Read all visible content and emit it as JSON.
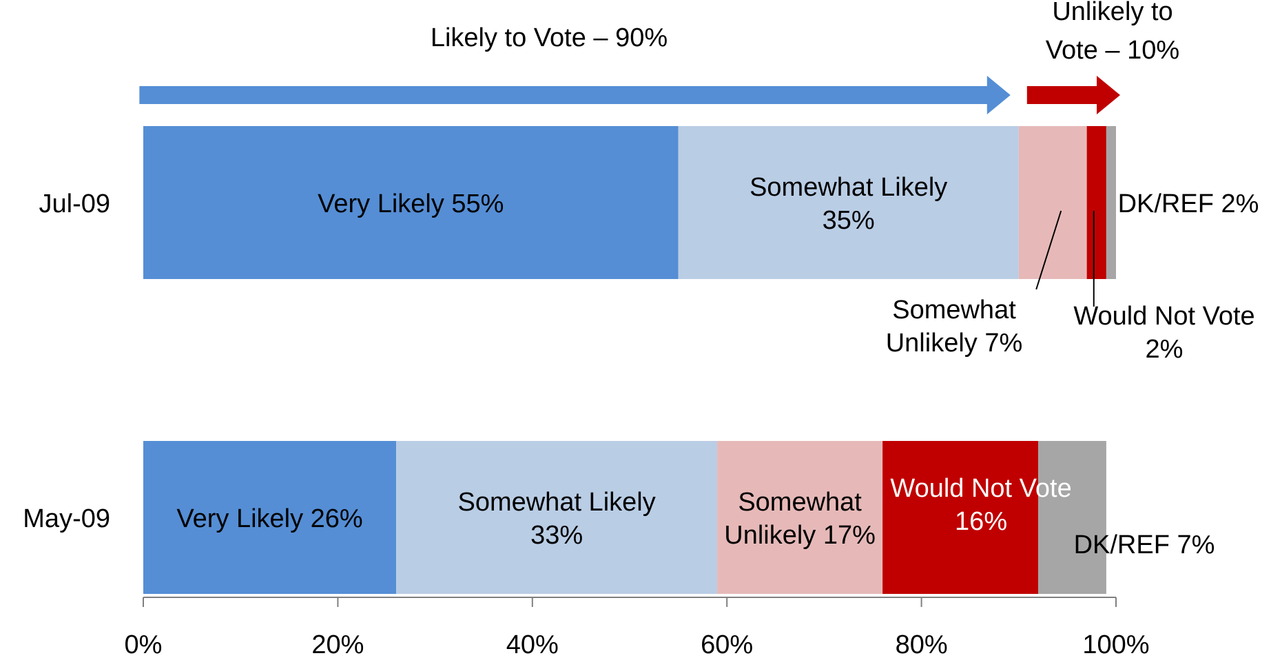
{
  "chart_data": {
    "type": "bar",
    "orientation": "horizontal",
    "stacked": true,
    "categories": [
      "Jul-09",
      "May-09"
    ],
    "xlim": [
      0,
      100
    ],
    "x_ticks": [
      "0%",
      "20%",
      "40%",
      "60%",
      "80%",
      "100%"
    ],
    "grid": false,
    "series": [
      {
        "name": "Very Likely",
        "values": [
          55,
          26
        ],
        "color": "#558ed5",
        "labels": [
          "Very Likely 55%",
          "Very Likely 26%"
        ]
      },
      {
        "name": "Somewhat Likely",
        "values": [
          35,
          33
        ],
        "color": "#b9cde5",
        "labels": [
          "Somewhat Likely 35%",
          "Somewhat Likely 33%"
        ]
      },
      {
        "name": "Somewhat Unlikely",
        "values": [
          7,
          17
        ],
        "color": "#e6b9b8",
        "labels": [
          "Somewhat Unlikely 7%",
          "Somewhat Unlikely 17%"
        ]
      },
      {
        "name": "Would Not Vote",
        "values": [
          2,
          16
        ],
        "color": "#c00000",
        "labels": [
          "Would Not Vote 2%",
          "Would Not Vote 16%"
        ]
      },
      {
        "name": "DK/REF",
        "values": [
          2,
          7
        ],
        "color": "#a6a6a6",
        "labels": [
          "DK/REF 2%",
          "DK/REF 7%"
        ]
      }
    ],
    "annotations": {
      "likely_arrow": {
        "text": "Likely to Vote – 90%",
        "value": 90,
        "color": "#558ed5"
      },
      "unlikely_arrow": {
        "text": "Unlikely to Vote – 10%",
        "value": 10,
        "color": "#c00000"
      }
    }
  }
}
